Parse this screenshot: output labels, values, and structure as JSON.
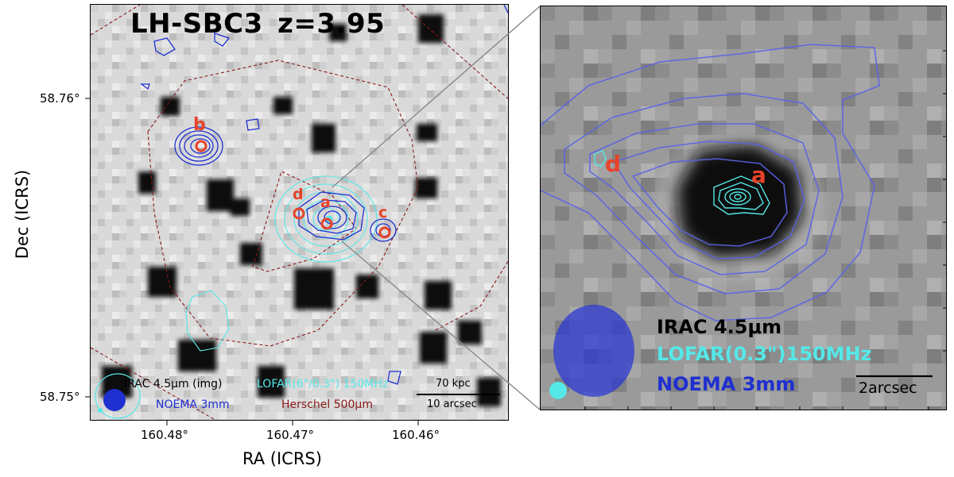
{
  "left_panel": {
    "title_name": "LH-SBC3",
    "title_z": "z=3.95",
    "x_axis_title": "RA (ICRS)",
    "y_axis_title": "Dec (ICRS)",
    "x_ticks": [
      "160.48°",
      "160.47°",
      "160.46°"
    ],
    "y_ticks": [
      "58.76°",
      "58.75°"
    ],
    "source_labels": [
      "b",
      "d",
      "a",
      "c"
    ],
    "legend": {
      "irac": "IRAC 4.5μm (img)",
      "lofar": "LOFAR(6\"/0.3\") 150MHz",
      "noema": "NOEMA 3mm",
      "herschel": "Herschel 500μm"
    },
    "scalebar_physical": "70 kpc",
    "scalebar_angular": "10 arcsec"
  },
  "right_panel": {
    "source_labels": [
      "d",
      "a"
    ],
    "legend": {
      "irac": "IRAC 4.5μm",
      "lofar": "LOFAR(0.3\")150MHz",
      "noema": "NOEMA 3mm"
    },
    "scalebar": "2arcsec"
  },
  "colors": {
    "noema": "#1f2fd0",
    "lofar": "#55e8e8",
    "herschel": "#8b1a1a",
    "marker": "#e8422a"
  }
}
